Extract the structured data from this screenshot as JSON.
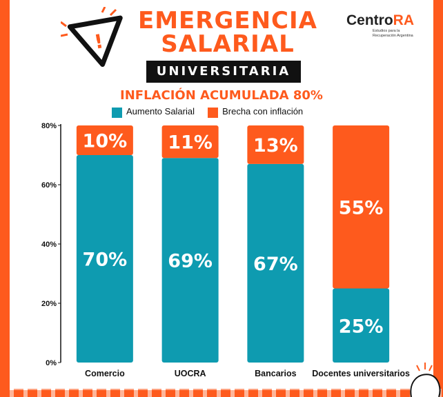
{
  "header": {
    "title_line1": "EMERGENCIA",
    "title_line2": "SALARIAL",
    "subtitle": "UNIVERSITARIA"
  },
  "logo": {
    "brand_main": "Centro",
    "brand_accent": "RA",
    "tagline": "Estudios para la Recuperación Argentina"
  },
  "icons": [
    "warning-triangle-icon"
  ],
  "colors": {
    "aumento": "#0e9bb0",
    "brecha": "#fe5a1d",
    "background": "#fe5a1d"
  },
  "chart_data": {
    "type": "bar",
    "stacked": true,
    "title": "INFLACIÓN ACUMULADA 80%",
    "categories": [
      "Comercio",
      "UOCRA",
      "Bancarios",
      "Docentes universitarios"
    ],
    "series": [
      {
        "name": "Aumento Salarial",
        "values": [
          70,
          69,
          67,
          25
        ],
        "labels": [
          "70%",
          "69%",
          "67%",
          "25%"
        ]
      },
      {
        "name": "Brecha con inflación",
        "values": [
          10,
          11,
          13,
          55
        ],
        "labels": [
          "10%",
          "11%",
          "13%",
          "55%"
        ]
      }
    ],
    "ylim": [
      0,
      80
    ],
    "yticks": [
      0,
      20,
      40,
      60,
      80
    ],
    "ytick_labels": [
      "0%",
      "20%",
      "40%",
      "60%",
      "80%"
    ],
    "legend": "top",
    "grid": false
  }
}
